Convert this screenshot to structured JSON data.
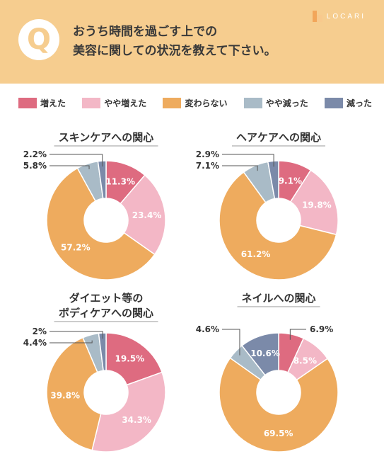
{
  "header": {
    "q_letter": "Q",
    "question_line1": "おうち時間を過ごす上での",
    "question_line2": "美容に関しての状況を教えて下さい。",
    "logo_text": "LOCARI"
  },
  "colors": {
    "header_bg": "#f6cd8f",
    "increased": "#de6b80",
    "slightly_increased": "#f3b7c6",
    "unchanged": "#eeab5e",
    "slightly_decreased": "#a9bbc7",
    "decreased": "#7b8aa9"
  },
  "chart_data": [
    {
      "type": "pie",
      "title": "スキンケアへの関心",
      "categories": [
        "増えた",
        "やや増えた",
        "変わらない",
        "やや減った",
        "減った"
      ],
      "values": [
        11.3,
        23.4,
        57.2,
        5.8,
        2.2
      ],
      "labels": [
        "11.3%",
        "23.4%",
        "57.2%",
        "5.8%",
        "2.2%"
      ]
    },
    {
      "type": "pie",
      "title": "ヘアケアへの関心",
      "categories": [
        "増えた",
        "やや増えた",
        "変わらない",
        "やや減った",
        "減った"
      ],
      "values": [
        9.1,
        19.8,
        61.2,
        7.1,
        2.9
      ],
      "labels": [
        "9.1%",
        "19.8%",
        "61.2%",
        "7.1%",
        "2.9%"
      ]
    },
    {
      "type": "pie",
      "title": "ダイエット等の\nボディケアへの関心",
      "categories": [
        "増えた",
        "やや増えた",
        "変わらない",
        "やや減った",
        "減った"
      ],
      "values": [
        19.5,
        34.3,
        39.8,
        4.4,
        2.0
      ],
      "labels": [
        "19.5%",
        "34.3%",
        "39.8%",
        "4.4%",
        "2%"
      ]
    },
    {
      "type": "pie",
      "title": "ネイルへの関心",
      "categories": [
        "増えた",
        "やや増えた",
        "変わらない",
        "やや減った",
        "減った"
      ],
      "values": [
        6.9,
        8.5,
        69.5,
        4.6,
        10.6
      ],
      "labels": [
        "6.9%",
        "8.5%",
        "69.5%",
        "4.6%",
        "10.6%"
      ]
    }
  ]
}
